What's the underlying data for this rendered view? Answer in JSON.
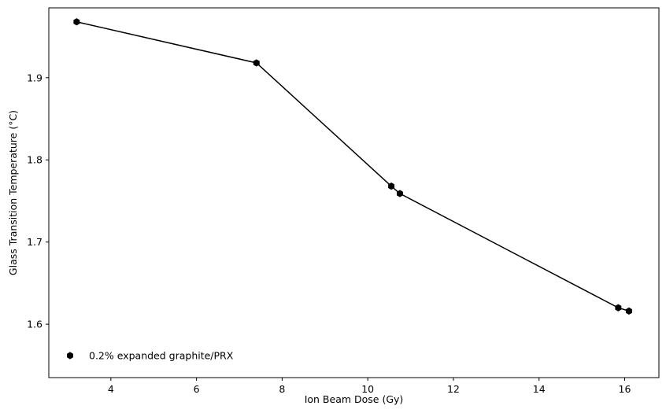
{
  "chart_data": {
    "type": "line",
    "title": "",
    "xlabel": "Ion Beam Dose (Gy)",
    "ylabel": "Glass Transition Temperature (°C)",
    "xlim": [
      2.55,
      16.8
    ],
    "ylim": [
      1.535,
      1.985
    ],
    "x_ticks": [
      4,
      6,
      8,
      10,
      12,
      14,
      16
    ],
    "y_ticks": [
      1.6,
      1.7,
      1.8,
      1.9
    ],
    "grid": false,
    "legend_position": "lower-left",
    "series": [
      {
        "name": "0.2% expanded graphite/PRX",
        "color": "#000000",
        "marker": "hexagon",
        "x": [
          3.2,
          7.4,
          10.55,
          10.75,
          15.85,
          16.1
        ],
        "y": [
          1.968,
          1.918,
          1.768,
          1.759,
          1.62,
          1.616
        ]
      }
    ]
  }
}
